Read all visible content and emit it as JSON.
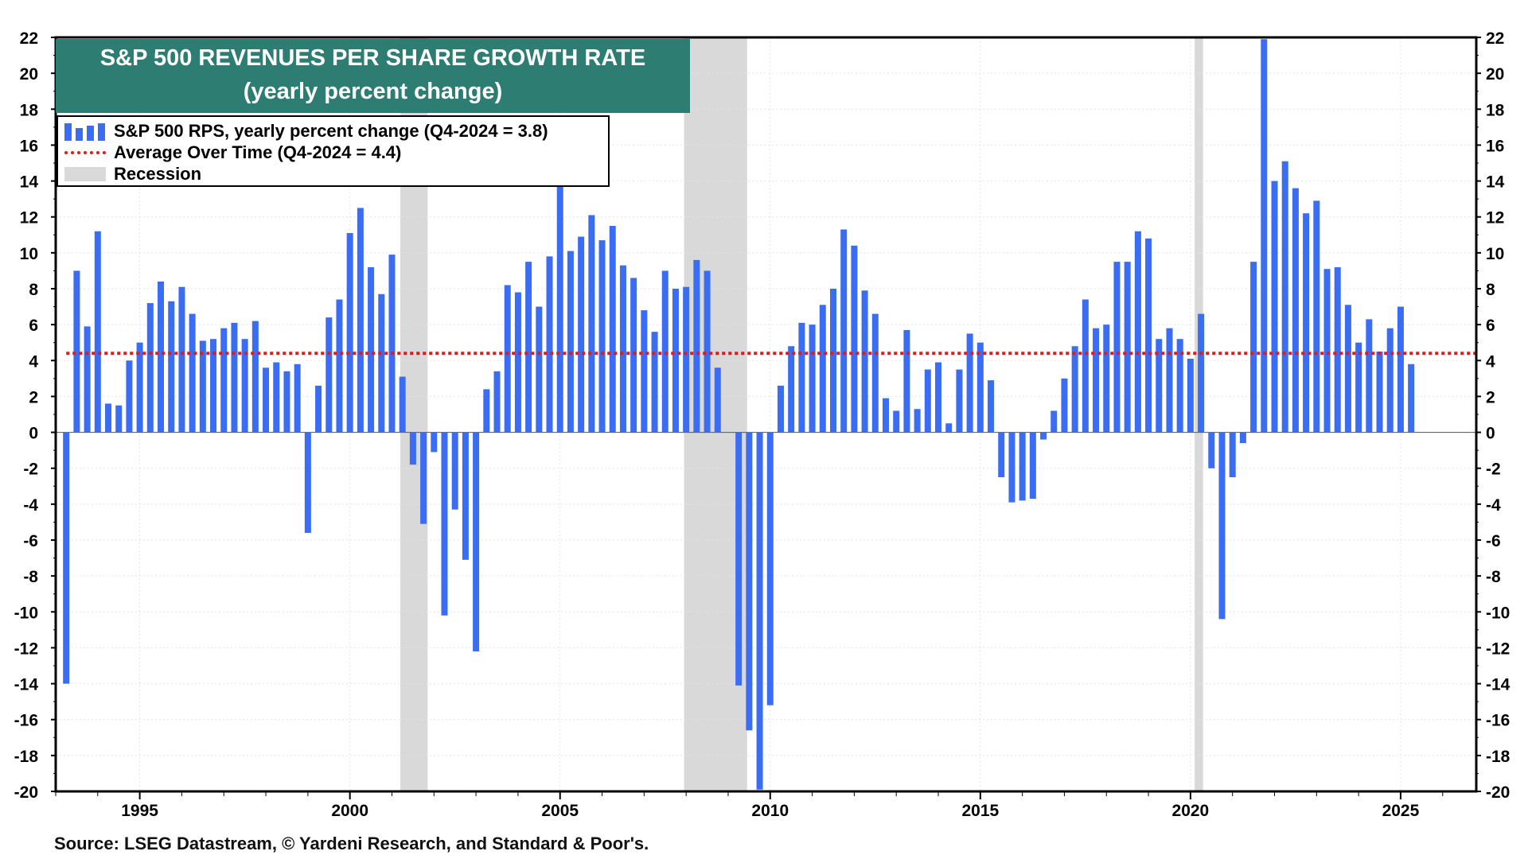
{
  "chart_data": {
    "type": "bar",
    "title": "S&P 500 REVENUES PER SHARE GROWTH RATE",
    "subtitle": "(yearly percent change)",
    "source": "Source: LSEG Datastream, © Yardeni Research, and Standard & Poor's.",
    "xlabel": "",
    "ylabel": "",
    "xlim": [
      1993.0,
      2026.8
    ],
    "ylim": [
      -20,
      22
    ],
    "y_ticks": [
      "22",
      "20",
      "18",
      "16",
      "14",
      "12",
      "10",
      "8",
      "6",
      "4",
      "2",
      "0",
      "-2",
      "-4",
      "-6",
      "-8",
      "-10",
      "-12",
      "-14",
      "-16",
      "-18",
      "-20"
    ],
    "x_ticks": [
      "1995",
      "2000",
      "2005",
      "2010",
      "2015",
      "2020",
      "2025"
    ],
    "grid": true,
    "legend": {
      "position": "top-left",
      "entries": [
        "S&P 500 RPS, yearly percent change (Q4-2024 = 3.8)",
        "Average Over Time (Q4-2024 = 4.4)",
        "Recession"
      ]
    },
    "colors": {
      "bars": "#3a6cf4",
      "average": "#e31a1c",
      "recession": "#d9d9d9",
      "title_bg": "#2e7d72"
    },
    "average": 4.4,
    "recessions": [
      [
        2001.2,
        2001.85
      ],
      [
        2007.95,
        2009.45
      ],
      [
        2020.1,
        2020.3
      ]
    ],
    "series": [
      {
        "name": "S&P 500 RPS, yearly percent change",
        "start": 1993.25,
        "step": 0.25,
        "values": [
          -14.0,
          9.0,
          5.9,
          11.2,
          1.6,
          1.5,
          4.0,
          5.0,
          7.2,
          8.4,
          7.3,
          8.1,
          6.6,
          5.1,
          5.2,
          5.8,
          6.1,
          5.2,
          6.2,
          3.6,
          3.9,
          3.4,
          3.8,
          -5.6,
          2.6,
          6.4,
          7.4,
          11.1,
          12.5,
          9.2,
          7.7,
          9.9,
          3.1,
          -1.8,
          -5.1,
          -1.1,
          -10.2,
          -4.3,
          -7.1,
          -12.2,
          2.4,
          3.4,
          8.2,
          7.8,
          9.5,
          7.0,
          9.8,
          13.7,
          10.1,
          10.9,
          12.1,
          10.7,
          11.5,
          9.3,
          8.6,
          6.8,
          5.6,
          9.0,
          8.0,
          8.1,
          9.6,
          9.0,
          3.6,
          0.0,
          -14.1,
          -16.6,
          -19.9,
          -15.2,
          2.6,
          4.8,
          6.1,
          6.0,
          7.1,
          8.0,
          11.3,
          10.4,
          7.9,
          6.6,
          1.9,
          1.2,
          5.7,
          1.3,
          3.5,
          3.9,
          0.5,
          3.5,
          5.5,
          5.0,
          2.9,
          -2.5,
          -3.9,
          -3.8,
          -3.7,
          -0.4,
          1.2,
          3.0,
          4.8,
          7.4,
          5.8,
          6.0,
          9.5,
          9.5,
          11.2,
          10.8,
          5.2,
          5.8,
          5.2,
          4.1,
          6.6,
          -2.0,
          -10.4,
          -2.5,
          -0.6,
          9.5,
          21.9,
          14.0,
          15.1,
          13.6,
          12.2,
          12.9,
          9.1,
          9.2,
          7.1,
          5.0,
          6.3,
          4.5,
          5.8,
          7.0,
          3.8
        ]
      }
    ]
  }
}
